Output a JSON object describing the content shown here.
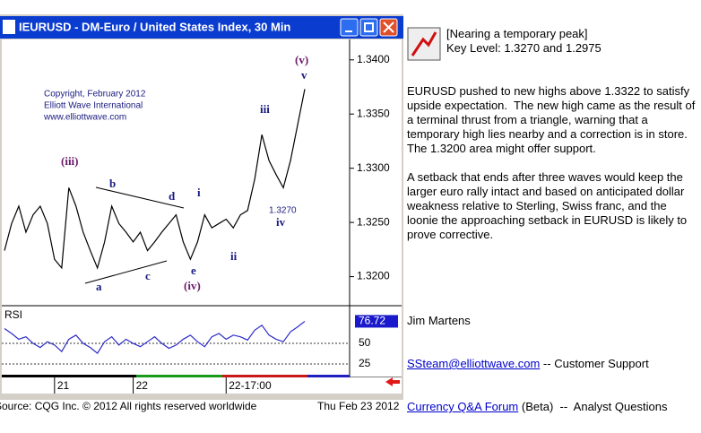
{
  "window_title": "IEURUSD - DM-Euro / United States Index, 30 Min",
  "chart_data": {
    "type": "line",
    "categories": [
      null,
      null,
      null,
      null,
      null,
      null,
      null,
      "21",
      null,
      null,
      null,
      null,
      null,
      null,
      null,
      null,
      null,
      null,
      "22",
      null,
      null,
      null,
      null,
      null,
      null,
      null,
      null,
      null,
      null,
      null,
      null,
      "22-17:00",
      null,
      null,
      null,
      null,
      null,
      null,
      null,
      null,
      null,
      null,
      null
    ],
    "values": [
      1.3224,
      1.3249,
      1.3265,
      1.3241,
      1.3257,
      1.3265,
      1.3249,
      1.3216,
      1.3208,
      1.3282,
      1.3265,
      1.3241,
      1.3224,
      1.3208,
      1.3232,
      1.3265,
      1.3249,
      1.3241,
      1.3232,
      1.3241,
      1.3224,
      1.3232,
      1.3241,
      1.3249,
      1.3257,
      1.3232,
      1.3216,
      1.3232,
      1.3257,
      1.3245,
      1.3249,
      1.3253,
      1.3245,
      1.3257,
      1.3261,
      1.329,
      1.3331,
      1.3307,
      1.3294,
      1.3282,
      1.3307,
      1.334,
      1.3373
    ],
    "color": "#000000",
    "ylim": [
      1.3174,
      1.3418
    ],
    "yticks": [
      {
        "value": 1.34,
        "label": "1.3400"
      },
      {
        "value": 1.335,
        "label": "1.3350"
      },
      {
        "value": 1.33,
        "label": "1.3300"
      },
      {
        "value": 1.325,
        "label": "1.3250"
      },
      {
        "value": 1.32,
        "label": "1.3200"
      }
    ],
    "copyright": [
      "Copyright, February 2012",
      "Elliott Wave International",
      "www.elliottwave.com"
    ],
    "annotations": [
      "(iii)",
      "b",
      "d",
      "i",
      "iii",
      "(v)",
      "v",
      "a",
      "c",
      "e",
      "(iv)",
      "ii",
      "iv",
      "1.3270"
    ],
    "rsi": {
      "label": "RSI",
      "color": "#2b2bc8",
      "values": [
        68,
        62,
        55,
        58,
        50,
        45,
        52,
        48,
        40,
        55,
        60,
        50,
        45,
        38,
        52,
        58,
        48,
        55,
        50,
        46,
        52,
        58,
        50,
        44,
        48,
        55,
        60,
        52,
        46,
        58,
        62,
        55,
        60,
        58,
        54,
        66,
        72,
        60,
        55,
        52,
        64,
        70,
        76.72
      ],
      "ylim": [
        12,
        93.5
      ],
      "yticks": [
        25,
        50
      ],
      "current_value": 76.72
    }
  },
  "footer": {
    "source": "Source: CQG Inc. © 2012 All rights reserved worldwide",
    "date": "Thu Feb 23 2012"
  },
  "sidebar": {
    "heading": "[Nearing a temporary peak]",
    "key_level": "Key Level: 1.3270 and 1.2975",
    "paragraph_1": [
      "EURUSD pushed to new highs above 1.3322 to satisfy",
      "upside expectation.  The new high came as the result of",
      "a terminal thrust from a triangle, warning that a",
      "temporary high lies nearby and a correction is in store.",
      "The 1.3200 area might offer support."
    ],
    "paragraph_2": [
      "A setback that ends after three waves would keep the",
      "larger euro rally intact and based on anticipated dollar",
      "weakness relative to Sterling, Swiss franc, and the",
      "loonie the approaching setback in EURUSD is likely to",
      "prove corrective."
    ],
    "author": "Jim Martens",
    "email": "SSteam@elliottwave.com",
    "email_note": " -- Customer Support",
    "forum": "Currency Q&A Forum",
    "forum_note": " (Beta)  --  Analyst Questions"
  }
}
